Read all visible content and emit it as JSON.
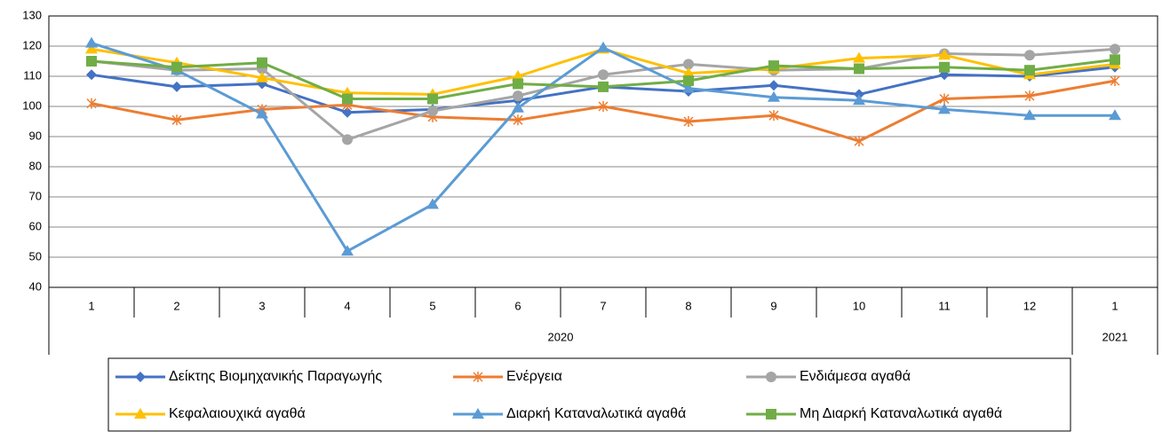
{
  "chart_data": {
    "type": "line",
    "categories": [
      "1",
      "2",
      "3",
      "4",
      "5",
      "6",
      "7",
      "8",
      "9",
      "10",
      "11",
      "12",
      "1"
    ],
    "category_groups": [
      "2020",
      "2020",
      "2020",
      "2020",
      "2020",
      "2020",
      "2020",
      "2020",
      "2020",
      "2020",
      "2020",
      "2020",
      "2021"
    ],
    "ylim": [
      40,
      130
    ],
    "yticks": [
      40,
      50,
      60,
      70,
      80,
      90,
      100,
      110,
      120,
      130
    ],
    "grid": true,
    "legend": "bottom",
    "series": [
      {
        "name": "Δείκτης Βιομηχανικής Παραγωγής",
        "color": "#4472c4",
        "marker": "diamond",
        "values": [
          110.5,
          106.5,
          107.5,
          98,
          99,
          102,
          106.5,
          105,
          107,
          104,
          110.5,
          110,
          113
        ]
      },
      {
        "name": "Ενέργεια",
        "color": "#ed7d31",
        "marker": "star",
        "values": [
          101,
          95.5,
          99,
          100.5,
          96.5,
          95.5,
          100,
          95,
          97,
          88.5,
          102.5,
          103.5,
          108.5
        ]
      },
      {
        "name": "Ενδιάμεσα αγαθά",
        "color": "#a5a5a5",
        "marker": "circle",
        "values": [
          115,
          112,
          112.5,
          89,
          98.5,
          103.5,
          110.5,
          114,
          112,
          112.5,
          117.5,
          117,
          119
        ]
      },
      {
        "name": "Κεφαλαιουχικά αγαθά",
        "color": "#ffc000",
        "marker": "triangle",
        "values": [
          119,
          114.5,
          109.5,
          104.5,
          104,
          110,
          119,
          111,
          112.5,
          116,
          117,
          110.5,
          114
        ]
      },
      {
        "name": "Διαρκή Καταναλωτικά αγαθά",
        "color": "#5b9bd5",
        "marker": "triangle",
        "values": [
          121,
          112,
          97.5,
          52,
          67.5,
          99.5,
          119.5,
          106,
          103,
          102,
          99,
          97,
          97
        ]
      },
      {
        "name": "Μη Διαρκή Καταναλωτικά αγαθά",
        "color": "#70ad47",
        "marker": "square",
        "values": [
          115,
          113,
          114.5,
          102.5,
          102.5,
          107.5,
          106.5,
          108.5,
          113.5,
          112.5,
          113,
          112,
          115.5
        ]
      }
    ]
  }
}
